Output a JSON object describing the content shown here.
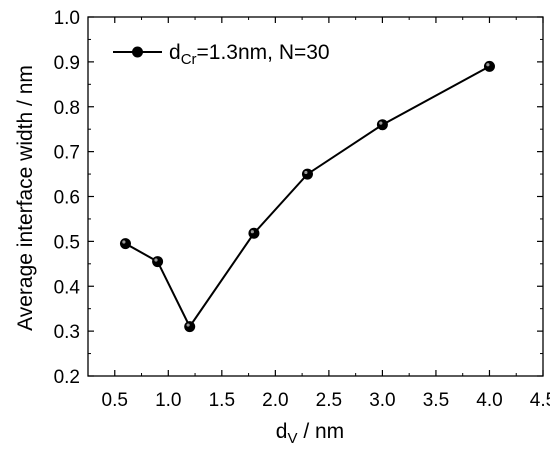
{
  "chart_data": {
    "type": "line",
    "x": [
      0.6,
      0.9,
      1.2,
      1.8,
      2.3,
      3.0,
      4.0
    ],
    "series": [
      {
        "name_main": "d",
        "name_sub": "Cr",
        "name_rest": "=1.3nm, N=30",
        "values": [
          0.495,
          0.455,
          0.31,
          0.518,
          0.65,
          0.76,
          0.89
        ]
      }
    ],
    "xlim": [
      0.25,
      4.5
    ],
    "ylim": [
      0.2,
      1.0
    ],
    "xticks": [
      "0.5",
      "1.0",
      "1.5",
      "2.0",
      "2.5",
      "3.0",
      "3.5",
      "4.0",
      "4.5"
    ],
    "yticks": [
      "0.2",
      "0.3",
      "0.4",
      "0.5",
      "0.6",
      "0.7",
      "0.8",
      "0.9",
      "1.0"
    ],
    "xlabel_main": "d",
    "xlabel_sub": "V",
    "xlabel_rest": " / nm",
    "ylabel": "Average interface width / nm",
    "legend_position": "top-left",
    "grid": false,
    "line_color": "#000000",
    "marker_color": "#000000"
  }
}
